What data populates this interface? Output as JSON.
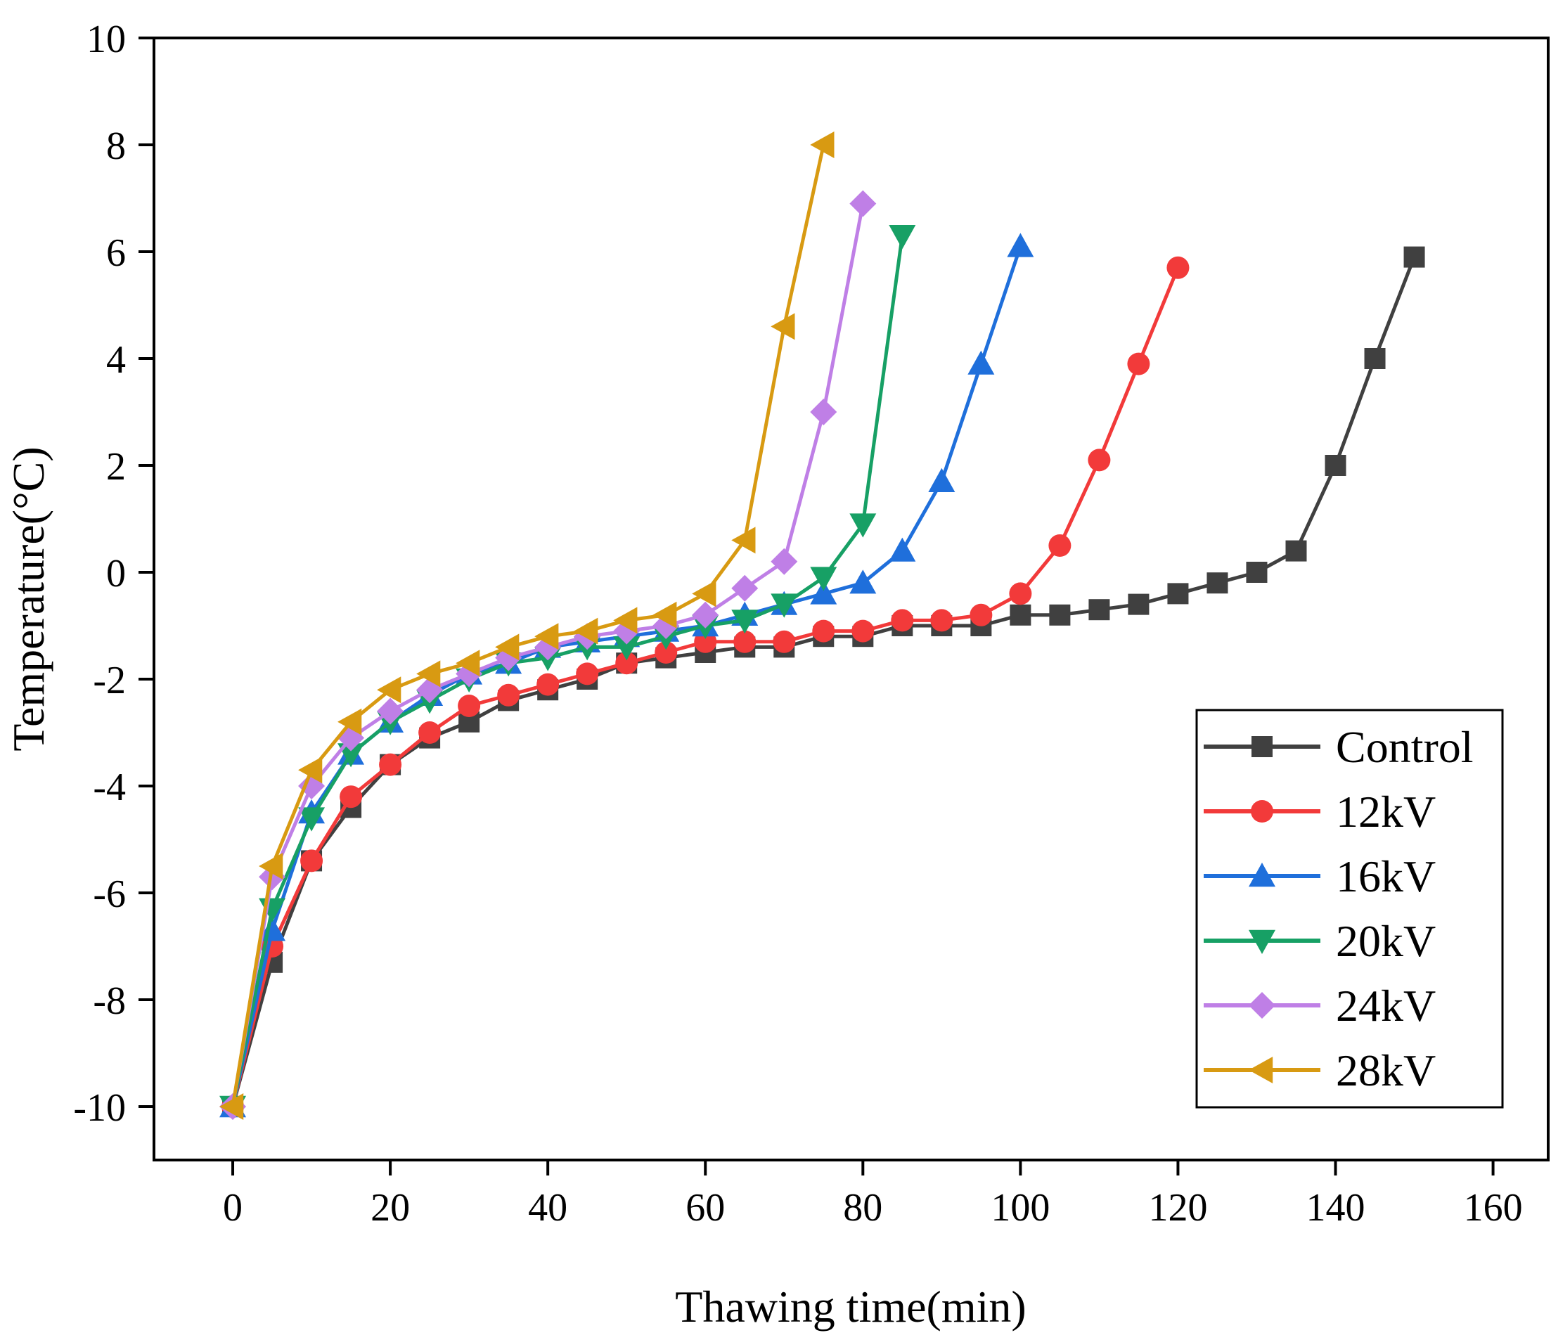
{
  "chart_data": {
    "type": "line",
    "title": "",
    "xlabel": "Thawing time(min)",
    "ylabel": "Temperature(°C)",
    "xlim": [
      -10,
      167
    ],
    "ylim": [
      -11,
      10
    ],
    "xticks": [
      0,
      20,
      40,
      60,
      80,
      100,
      120,
      140,
      160
    ],
    "yticks": [
      -10,
      -8,
      -6,
      -4,
      -2,
      0,
      2,
      4,
      6,
      8,
      10
    ],
    "grid": false,
    "legend_position": "bottom-right",
    "series": [
      {
        "name": "Control",
        "color": "#404040",
        "marker": "square",
        "x": [
          0,
          5,
          10,
          15,
          20,
          25,
          30,
          35,
          40,
          45,
          50,
          55,
          60,
          65,
          70,
          75,
          80,
          85,
          90,
          95,
          100,
          105,
          110,
          115,
          120,
          125,
          130,
          135,
          140,
          145,
          150
        ],
        "y": [
          -10,
          -7.3,
          -5.4,
          -4.4,
          -3.6,
          -3.1,
          -2.8,
          -2.4,
          -2.2,
          -2.0,
          -1.7,
          -1.6,
          -1.5,
          -1.4,
          -1.4,
          -1.2,
          -1.2,
          -1.0,
          -1.0,
          -1.0,
          -0.8,
          -0.8,
          -0.7,
          -0.6,
          -0.4,
          -0.2,
          0.0,
          0.4,
          2.0,
          4.0,
          5.9
        ]
      },
      {
        "name": "12kV",
        "color": "#F23A3A",
        "marker": "circle",
        "x": [
          0,
          5,
          10,
          15,
          20,
          25,
          30,
          35,
          40,
          45,
          50,
          55,
          60,
          65,
          70,
          75,
          80,
          85,
          90,
          95,
          100,
          105,
          110,
          115,
          120
        ],
        "y": [
          -10,
          -7.0,
          -5.4,
          -4.2,
          -3.6,
          -3.0,
          -2.5,
          -2.3,
          -2.1,
          -1.9,
          -1.7,
          -1.5,
          -1.3,
          -1.3,
          -1.3,
          -1.1,
          -1.1,
          -0.9,
          -0.9,
          -0.8,
          -0.4,
          0.5,
          2.1,
          3.9,
          5.7
        ]
      },
      {
        "name": "16kV",
        "color": "#1F6FDB",
        "marker": "triangle-up",
        "x": [
          0,
          5,
          10,
          15,
          20,
          25,
          30,
          35,
          40,
          45,
          50,
          55,
          60,
          65,
          70,
          75,
          80,
          85,
          90,
          95,
          100
        ],
        "y": [
          -10,
          -6.7,
          -4.5,
          -3.4,
          -2.8,
          -2.3,
          -1.9,
          -1.7,
          -1.4,
          -1.3,
          -1.2,
          -1.1,
          -1.0,
          -0.8,
          -0.6,
          -0.4,
          -0.2,
          0.4,
          1.7,
          3.9,
          6.1
        ]
      },
      {
        "name": "20kV",
        "color": "#17A065",
        "marker": "triangle-down",
        "x": [
          0,
          5,
          10,
          15,
          20,
          25,
          30,
          35,
          40,
          45,
          50,
          55,
          60,
          65,
          70,
          75,
          80,
          85
        ],
        "y": [
          -10,
          -6.3,
          -4.6,
          -3.4,
          -2.8,
          -2.4,
          -2.0,
          -1.7,
          -1.6,
          -1.4,
          -1.4,
          -1.2,
          -1.0,
          -0.9,
          -0.6,
          -0.1,
          0.9,
          6.3
        ]
      },
      {
        "name": "24kV",
        "color": "#BF7FE6",
        "marker": "diamond",
        "x": [
          0,
          5,
          10,
          15,
          20,
          25,
          30,
          35,
          40,
          45,
          50,
          55,
          60,
          65,
          70,
          75,
          80
        ],
        "y": [
          -10,
          -5.7,
          -4.0,
          -3.1,
          -2.6,
          -2.2,
          -1.9,
          -1.6,
          -1.4,
          -1.2,
          -1.1,
          -1.0,
          -0.8,
          -0.3,
          0.2,
          3.0,
          6.9
        ]
      },
      {
        "name": "28kV",
        "color": "#D89A12",
        "marker": "triangle-left",
        "x": [
          0,
          5,
          10,
          15,
          20,
          25,
          30,
          35,
          40,
          45,
          50,
          55,
          60,
          65,
          70,
          75
        ],
        "y": [
          -10,
          -5.5,
          -3.7,
          -2.8,
          -2.2,
          -1.9,
          -1.7,
          -1.4,
          -1.2,
          -1.1,
          -0.9,
          -0.8,
          -0.4,
          0.6,
          4.6,
          8.0
        ]
      }
    ]
  }
}
